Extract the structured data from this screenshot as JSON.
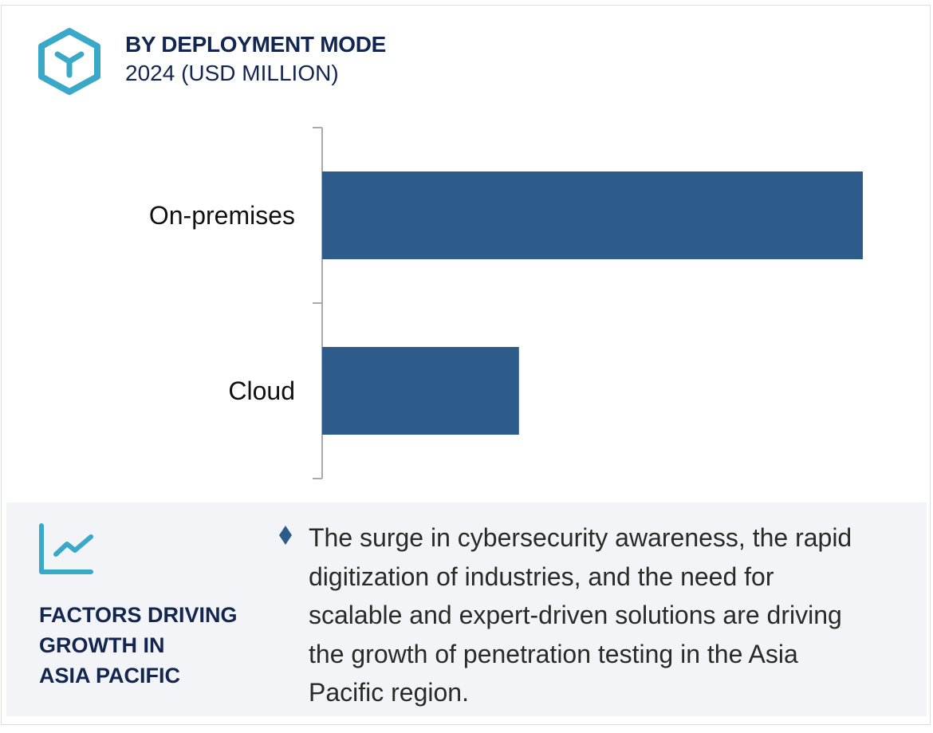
{
  "header": {
    "title": "BY DEPLOYMENT MODE",
    "subtitle": "2024 (USD MILLION)",
    "icon": "hexagon-y-icon"
  },
  "colors": {
    "bar": "#2d5c8a",
    "accent": "#3aa8c7",
    "title": "#13264f",
    "panel": "#f3f4f8"
  },
  "chart_data": {
    "type": "bar",
    "orientation": "horizontal",
    "title": "BY DEPLOYMENT MODE",
    "subtitle": "2024 (USD MILLION)",
    "categories": [
      "On-premises",
      "Cloud"
    ],
    "values": [
      100,
      36.4
    ],
    "value_note": "relative lengths; no axis values shown",
    "xlim": [
      0,
      100
    ],
    "grid": false,
    "legend": "none"
  },
  "factors": {
    "icon": "trend-chart-icon",
    "heading_lines": [
      "FACTORS DRIVING",
      "GROWTH IN",
      "ASIA PACIFIC"
    ],
    "bullet_lines": [
      "The surge in cybersecurity awareness, the rapid",
      "digitization of industries, and the need for",
      "scalable and expert-driven solutions are driving",
      "the growth of penetration testing in the Asia",
      "Pacific region."
    ]
  }
}
